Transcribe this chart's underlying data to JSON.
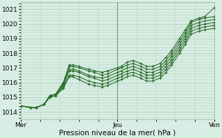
{
  "background_color": "#d8ede4",
  "plot_bg_color": "#d8ede4",
  "grid_color": "#a8cdb8",
  "line_color": "#2d6e2d",
  "marker_color": "#2d6e2d",
  "ylim": [
    1013.5,
    1021.5
  ],
  "yticks": [
    1014,
    1015,
    1016,
    1017,
    1018,
    1019,
    1020,
    1021
  ],
  "xlabel": "Pression niveau de la mer( hPa )",
  "xtick_labels": [
    "Mer",
    "Jeu",
    "Ven"
  ],
  "xtick_positions": [
    0,
    0.5,
    1.0
  ],
  "lines": [
    {
      "pts": [
        [
          0,
          1014.4
        ],
        [
          0.05,
          1014.3
        ],
        [
          0.08,
          1014.3
        ],
        [
          0.12,
          1014.5
        ],
        [
          0.15,
          1015.1
        ],
        [
          0.18,
          1015.2
        ],
        [
          0.22,
          1016.0
        ],
        [
          0.25,
          1017.2
        ],
        [
          0.27,
          1017.2
        ],
        [
          0.3,
          1017.1
        ],
        [
          0.35,
          1016.9
        ],
        [
          0.38,
          1016.8
        ],
        [
          0.42,
          1016.7
        ],
        [
          0.45,
          1016.8
        ],
        [
          0.5,
          1017.0
        ],
        [
          0.52,
          1017.1
        ],
        [
          0.55,
          1017.4
        ],
        [
          0.58,
          1017.5
        ],
        [
          0.62,
          1017.3
        ],
        [
          0.65,
          1017.1
        ],
        [
          0.68,
          1017.1
        ],
        [
          0.72,
          1017.3
        ],
        [
          0.75,
          1017.7
        ],
        [
          0.78,
          1018.2
        ],
        [
          0.82,
          1019.0
        ],
        [
          0.85,
          1019.6
        ],
        [
          0.88,
          1020.2
        ],
        [
          0.92,
          1020.4
        ],
        [
          0.95,
          1020.5
        ],
        [
          1.0,
          1021.1
        ]
      ]
    },
    {
      "pts": [
        [
          0,
          1014.4
        ],
        [
          0.05,
          1014.3
        ],
        [
          0.08,
          1014.3
        ],
        [
          0.12,
          1014.5
        ],
        [
          0.15,
          1015.1
        ],
        [
          0.18,
          1015.2
        ],
        [
          0.22,
          1016.0
        ],
        [
          0.25,
          1017.1
        ],
        [
          0.27,
          1017.1
        ],
        [
          0.3,
          1017.0
        ],
        [
          0.35,
          1016.8
        ],
        [
          0.38,
          1016.7
        ],
        [
          0.42,
          1016.5
        ],
        [
          0.45,
          1016.6
        ],
        [
          0.5,
          1016.9
        ],
        [
          0.52,
          1017.0
        ],
        [
          0.55,
          1017.2
        ],
        [
          0.58,
          1017.3
        ],
        [
          0.62,
          1017.1
        ],
        [
          0.65,
          1016.9
        ],
        [
          0.68,
          1016.9
        ],
        [
          0.72,
          1017.1
        ],
        [
          0.75,
          1017.5
        ],
        [
          0.78,
          1018.0
        ],
        [
          0.82,
          1018.8
        ],
        [
          0.85,
          1019.4
        ],
        [
          0.88,
          1020.1
        ],
        [
          0.92,
          1020.3
        ],
        [
          0.95,
          1020.4
        ],
        [
          1.0,
          1020.5
        ]
      ]
    },
    {
      "pts": [
        [
          0,
          1014.4
        ],
        [
          0.05,
          1014.3
        ],
        [
          0.08,
          1014.3
        ],
        [
          0.12,
          1014.5
        ],
        [
          0.15,
          1015.1
        ],
        [
          0.18,
          1015.2
        ],
        [
          0.22,
          1015.9
        ],
        [
          0.25,
          1016.9
        ],
        [
          0.27,
          1016.9
        ],
        [
          0.3,
          1016.8
        ],
        [
          0.35,
          1016.5
        ],
        [
          0.38,
          1016.4
        ],
        [
          0.42,
          1016.3
        ],
        [
          0.45,
          1016.4
        ],
        [
          0.5,
          1016.7
        ],
        [
          0.52,
          1016.8
        ],
        [
          0.55,
          1017.0
        ],
        [
          0.58,
          1017.1
        ],
        [
          0.62,
          1016.9
        ],
        [
          0.65,
          1016.7
        ],
        [
          0.68,
          1016.7
        ],
        [
          0.72,
          1016.9
        ],
        [
          0.75,
          1017.3
        ],
        [
          0.78,
          1017.8
        ],
        [
          0.82,
          1018.6
        ],
        [
          0.85,
          1019.2
        ],
        [
          0.88,
          1019.9
        ],
        [
          0.92,
          1020.1
        ],
        [
          0.95,
          1020.2
        ],
        [
          1.0,
          1020.3
        ]
      ]
    },
    {
      "pts": [
        [
          0,
          1014.4
        ],
        [
          0.05,
          1014.3
        ],
        [
          0.08,
          1014.3
        ],
        [
          0.12,
          1014.5
        ],
        [
          0.15,
          1015.1
        ],
        [
          0.18,
          1015.2
        ],
        [
          0.22,
          1015.8
        ],
        [
          0.25,
          1016.8
        ],
        [
          0.27,
          1016.8
        ],
        [
          0.3,
          1016.7
        ],
        [
          0.35,
          1016.4
        ],
        [
          0.38,
          1016.3
        ],
        [
          0.42,
          1016.1
        ],
        [
          0.45,
          1016.2
        ],
        [
          0.5,
          1016.5
        ],
        [
          0.52,
          1016.6
        ],
        [
          0.55,
          1016.8
        ],
        [
          0.58,
          1016.9
        ],
        [
          0.62,
          1016.7
        ],
        [
          0.65,
          1016.5
        ],
        [
          0.68,
          1016.5
        ],
        [
          0.72,
          1016.7
        ],
        [
          0.75,
          1017.1
        ],
        [
          0.78,
          1017.6
        ],
        [
          0.82,
          1018.4
        ],
        [
          0.85,
          1019.0
        ],
        [
          0.88,
          1019.7
        ],
        [
          0.92,
          1019.9
        ],
        [
          0.95,
          1020.0
        ],
        [
          1.0,
          1020.1
        ]
      ]
    },
    {
      "pts": [
        [
          0,
          1014.4
        ],
        [
          0.05,
          1014.3
        ],
        [
          0.08,
          1014.3
        ],
        [
          0.12,
          1014.5
        ],
        [
          0.15,
          1015.0
        ],
        [
          0.18,
          1015.1
        ],
        [
          0.22,
          1015.7
        ],
        [
          0.25,
          1016.5
        ],
        [
          0.27,
          1016.5
        ],
        [
          0.3,
          1016.4
        ],
        [
          0.35,
          1016.1
        ],
        [
          0.38,
          1016.0
        ],
        [
          0.42,
          1015.9
        ],
        [
          0.45,
          1016.0
        ],
        [
          0.5,
          1016.3
        ],
        [
          0.52,
          1016.4
        ],
        [
          0.55,
          1016.6
        ],
        [
          0.58,
          1016.7
        ],
        [
          0.62,
          1016.5
        ],
        [
          0.65,
          1016.3
        ],
        [
          0.68,
          1016.3
        ],
        [
          0.72,
          1016.5
        ],
        [
          0.75,
          1016.9
        ],
        [
          0.78,
          1017.4
        ],
        [
          0.82,
          1018.2
        ],
        [
          0.85,
          1018.8
        ],
        [
          0.88,
          1019.5
        ],
        [
          0.92,
          1019.7
        ],
        [
          0.95,
          1019.8
        ],
        [
          1.0,
          1019.9
        ]
      ]
    },
    {
      "pts": [
        [
          0,
          1014.4
        ],
        [
          0.05,
          1014.3
        ],
        [
          0.08,
          1014.3
        ],
        [
          0.12,
          1014.5
        ],
        [
          0.15,
          1015.0
        ],
        [
          0.18,
          1015.1
        ],
        [
          0.22,
          1015.6
        ],
        [
          0.25,
          1016.4
        ],
        [
          0.27,
          1016.4
        ],
        [
          0.3,
          1016.2
        ],
        [
          0.35,
          1015.9
        ],
        [
          0.38,
          1015.8
        ],
        [
          0.42,
          1015.7
        ],
        [
          0.45,
          1015.8
        ],
        [
          0.5,
          1016.1
        ],
        [
          0.52,
          1016.2
        ],
        [
          0.55,
          1016.4
        ],
        [
          0.58,
          1016.5
        ],
        [
          0.62,
          1016.3
        ],
        [
          0.65,
          1016.1
        ],
        [
          0.68,
          1016.1
        ],
        [
          0.72,
          1016.3
        ],
        [
          0.75,
          1016.7
        ],
        [
          0.78,
          1017.2
        ],
        [
          0.82,
          1018.0
        ],
        [
          0.85,
          1018.6
        ],
        [
          0.88,
          1019.3
        ],
        [
          0.92,
          1019.5
        ],
        [
          0.95,
          1019.6
        ],
        [
          1.0,
          1019.7
        ]
      ]
    }
  ],
  "marker_size": 3.5,
  "line_width": 0.8,
  "fontsize_label": 7.5,
  "fontsize_tick": 6.5
}
